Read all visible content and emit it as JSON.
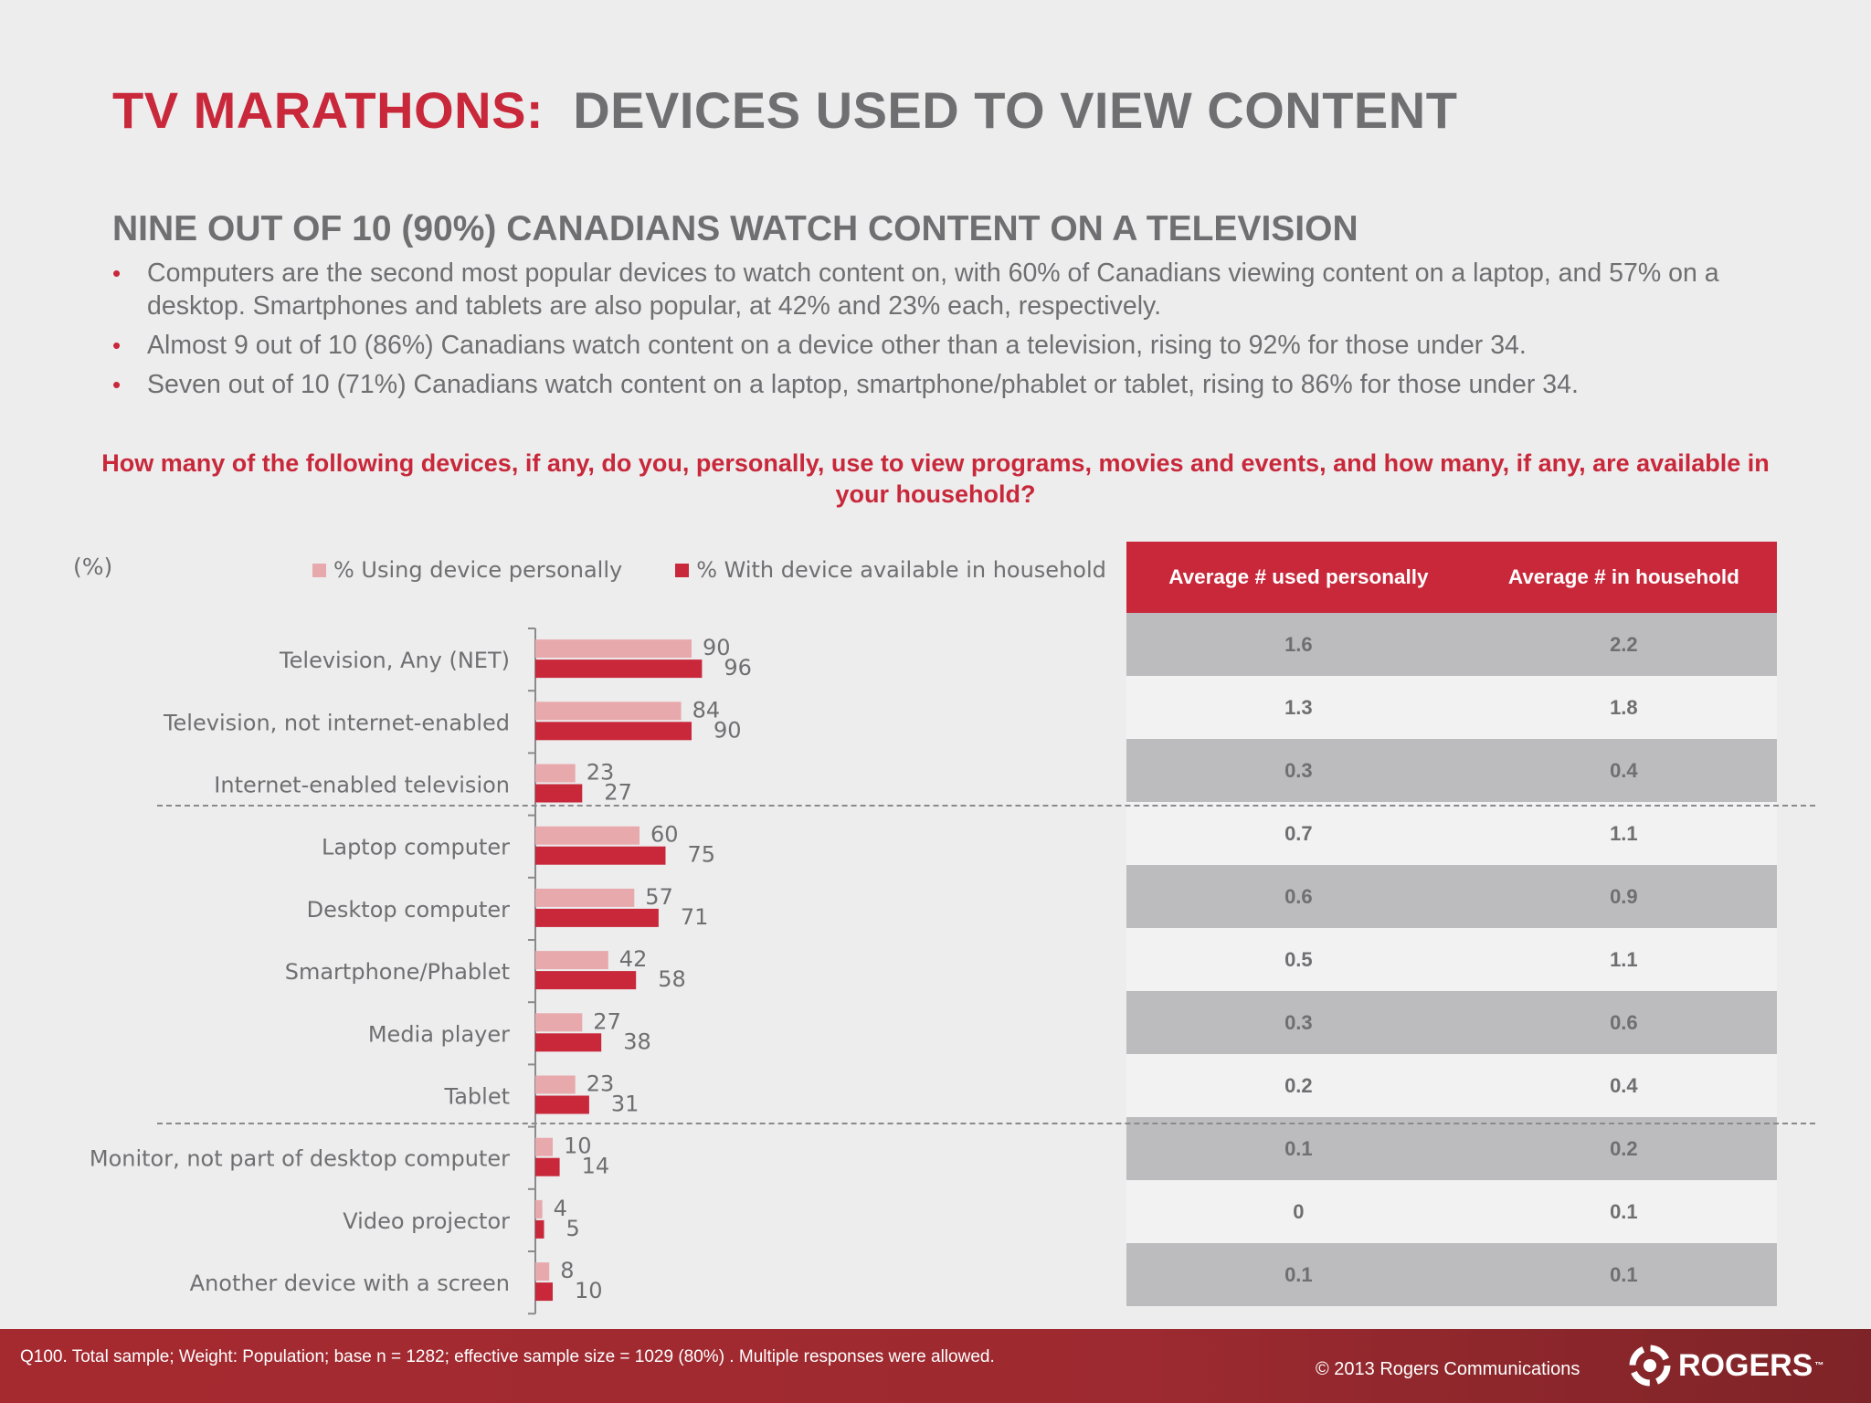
{
  "header": {
    "title_red": "TV MARATHONS:",
    "title_gray": "DEVICES USED TO VIEW CONTENT"
  },
  "summary": {
    "heading": "NINE OUT OF 10 (90%) CANADIANS WATCH CONTENT ON A TELEVISION",
    "bullets": [
      "Computers are the second most popular devices to watch content on, with 60% of Canadians viewing content on a laptop, and 57% on a desktop. Smartphones and tablets are also popular, at 42% and 23% each, respectively.",
      "Almost 9 out of 10 (86%) Canadians watch content on a device other than a television, rising to 92% for those under 34.",
      "Seven out of 10 (71%) Canadians watch content on a laptop, smartphone/phablet or tablet, rising to 86% for those under 34."
    ]
  },
  "question": "How many of the following devices, if any, do you, personally, use to view programs, movies and events, and how many, if any, are available in your household?",
  "unit_label": "(%)",
  "colors": {
    "personal": "#e8a9ad",
    "household": "#c8283a",
    "accent": "#c8283a"
  },
  "chart_data": {
    "type": "bar",
    "orientation": "horizontal",
    "categories": [
      "Television, Any (NET)",
      "Television, not internet-enabled",
      "Internet-enabled television",
      "Laptop computer",
      "Desktop computer",
      "Smartphone/Phablet",
      "Media player",
      "Tablet",
      "Monitor, not part of desktop computer",
      "Video projector",
      "Another device with a screen"
    ],
    "series": [
      {
        "name": "% Using device personally",
        "values": [
          90,
          84,
          23,
          60,
          57,
          42,
          27,
          23,
          10,
          4,
          8
        ]
      },
      {
        "name": "% With device available in household",
        "values": [
          96,
          90,
          27,
          75,
          71,
          58,
          38,
          31,
          14,
          5,
          10
        ]
      }
    ],
    "xlim": [
      0,
      100
    ],
    "legend": "top",
    "grid": false
  },
  "table": {
    "headers": [
      "Average # used personally",
      "Average # in household"
    ],
    "rows": [
      [
        "1.6",
        "2.2"
      ],
      [
        "1.3",
        "1.8"
      ],
      [
        "0.3",
        "0.4"
      ],
      [
        "0.7",
        "1.1"
      ],
      [
        "0.6",
        "0.9"
      ],
      [
        "0.5",
        "1.1"
      ],
      [
        "0.3",
        "0.6"
      ],
      [
        "0.2",
        "0.4"
      ],
      [
        "0.1",
        "0.2"
      ],
      [
        "0",
        "0.1"
      ],
      [
        "0.1",
        "0.1"
      ]
    ]
  },
  "footer": {
    "footnote": "Q100. Total sample; Weight: Population; base n = 1282; effective sample size = 1029 (80%) . Multiple responses were allowed.",
    "copyright": "© 2013 Rogers Communications",
    "logo_text": "ROGERS",
    "logo_tm": "™"
  }
}
